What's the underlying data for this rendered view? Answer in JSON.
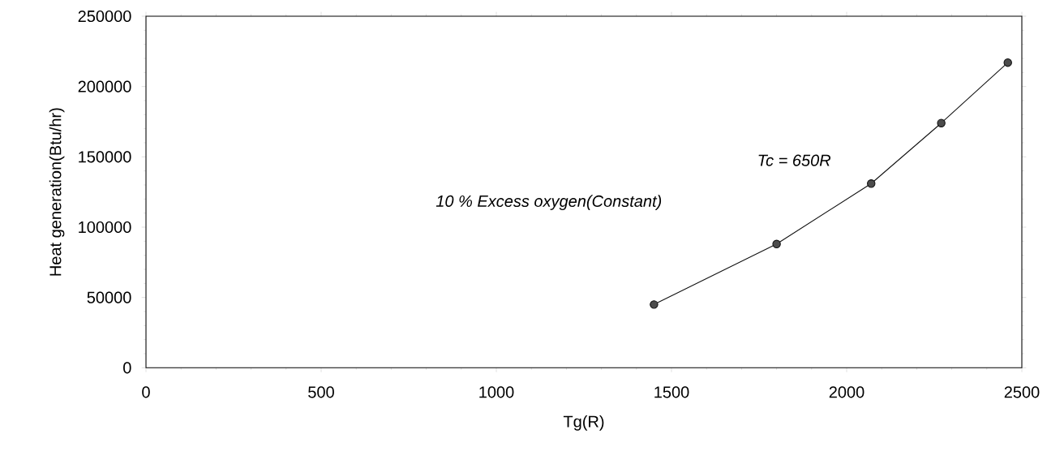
{
  "chart_data": {
    "type": "line",
    "xlabel": "Tg(R)",
    "ylabel": "Heat generation(Btu/hr)",
    "x": [
      1450,
      1800,
      2070,
      2270,
      2460
    ],
    "series": [
      {
        "color": "#111111",
        "values": [
          45000,
          88000,
          131000,
          174000,
          217000
        ]
      }
    ],
    "xlim": [
      0,
      2500
    ],
    "xticks": [
      0,
      500,
      1000,
      1500,
      2000,
      2500
    ],
    "ylim": [
      0,
      250000
    ],
    "yticks": [
      0,
      50000,
      100000,
      150000,
      200000,
      250000
    ],
    "marker": "circle",
    "line_style": "solid",
    "annotations": [
      "Tc = 650R",
      "10 % Excess oxygen(Constant)"
    ]
  }
}
